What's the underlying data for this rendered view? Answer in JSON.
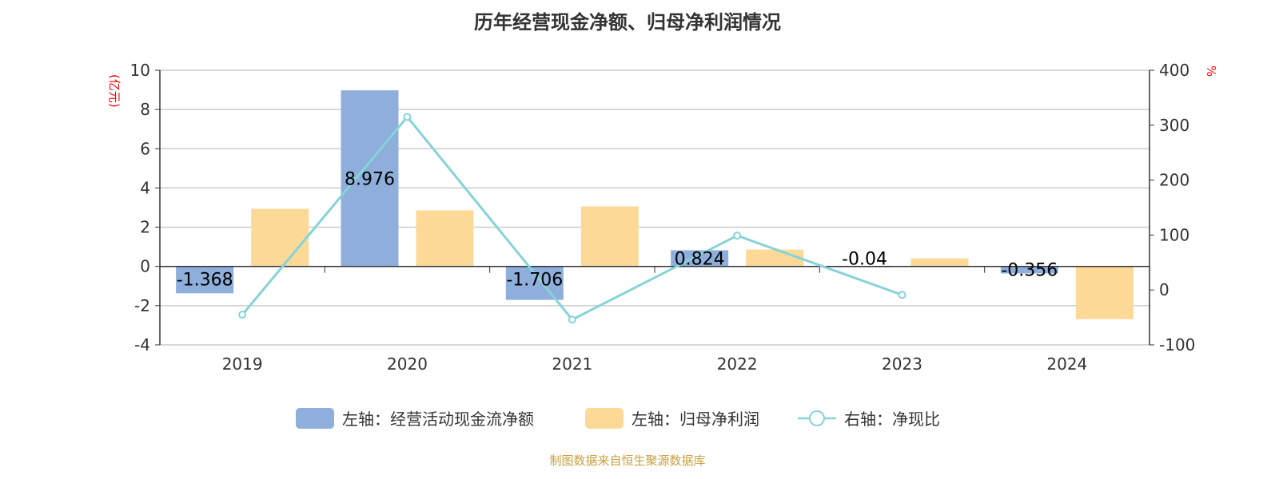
{
  "chart_data": {
    "type": "bar",
    "title": "历年经营现金净额、归母净利润情况",
    "categories": [
      "2019",
      "2020",
      "2021",
      "2022",
      "2023",
      "2024"
    ],
    "left_axis": {
      "label": "(亿元)",
      "range": [
        -4,
        10
      ],
      "ticks": [
        -4,
        -2,
        0,
        2,
        4,
        6,
        8,
        10
      ]
    },
    "right_axis": {
      "label": "%",
      "range": [
        -100,
        400
      ],
      "ticks": [
        -100,
        0,
        100,
        200,
        300,
        400
      ]
    },
    "grid": true,
    "legend_position": "bottom",
    "series": [
      {
        "name": "左轴：经营活动现金流净额",
        "type": "bar",
        "axis": "left",
        "color": "#8eaedb",
        "values": [
          -1.368,
          8.976,
          -1.706,
          0.824,
          -0.04,
          -0.356
        ],
        "labels": [
          "-1.368",
          "8.976",
          "-1.706",
          "0.824",
          "-0.04",
          "-0.356"
        ]
      },
      {
        "name": "左轴：归母净利润",
        "type": "bar",
        "axis": "left",
        "color": "#fdd998",
        "values": [
          2.94,
          2.86,
          3.06,
          0.86,
          0.41,
          -2.69
        ]
      },
      {
        "name": "右轴：净现比",
        "type": "line",
        "axis": "right",
        "color": "#86d3d8",
        "values": [
          -45,
          315,
          -54,
          99,
          -9,
          null
        ]
      }
    ]
  },
  "source": "制图数据来自恒生聚源数据库"
}
